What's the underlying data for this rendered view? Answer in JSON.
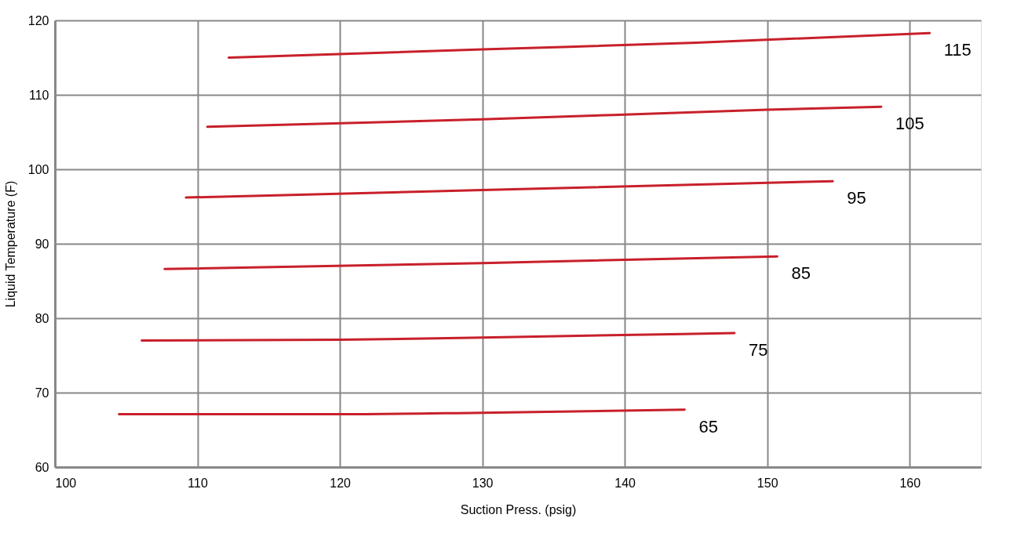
{
  "chart_data": {
    "type": "line",
    "xlabel": "Suction Press. (psig)",
    "ylabel": "Liquid Temperature (F)",
    "xlim": [
      100,
      165
    ],
    "ylim": [
      60,
      120
    ],
    "xticks": [
      100,
      110,
      120,
      130,
      140,
      150,
      160
    ],
    "yticks": [
      60,
      70,
      80,
      90,
      100,
      110,
      120
    ],
    "grid": true,
    "line_style": "solid",
    "marker": "none",
    "series": [
      {
        "name": "115",
        "color": "#c8202b",
        "x": [
          112.2,
          130,
          145,
          161.4
        ],
        "values": [
          115.0,
          116.1,
          117.0,
          118.3
        ]
      },
      {
        "name": "105",
        "color": "#c8202b",
        "x": [
          110.7,
          130,
          150,
          158.0
        ],
        "values": [
          105.7,
          106.7,
          108.0,
          108.4
        ]
      },
      {
        "name": "95",
        "color": "#c8202b",
        "x": [
          109.2,
          130,
          154.6
        ],
        "values": [
          96.2,
          97.2,
          98.4
        ]
      },
      {
        "name": "85",
        "color": "#c8202b",
        "x": [
          107.7,
          130,
          150.7
        ],
        "values": [
          86.6,
          87.4,
          88.3
        ]
      },
      {
        "name": "75",
        "color": "#c8202b",
        "x": [
          106.1,
          120,
          130,
          147.7
        ],
        "values": [
          77.0,
          77.1,
          77.4,
          78.0
        ]
      },
      {
        "name": "65",
        "color": "#c8202b",
        "x": [
          104.5,
          120,
          130,
          144.2
        ],
        "values": [
          67.1,
          67.1,
          67.3,
          67.7
        ]
      }
    ]
  }
}
